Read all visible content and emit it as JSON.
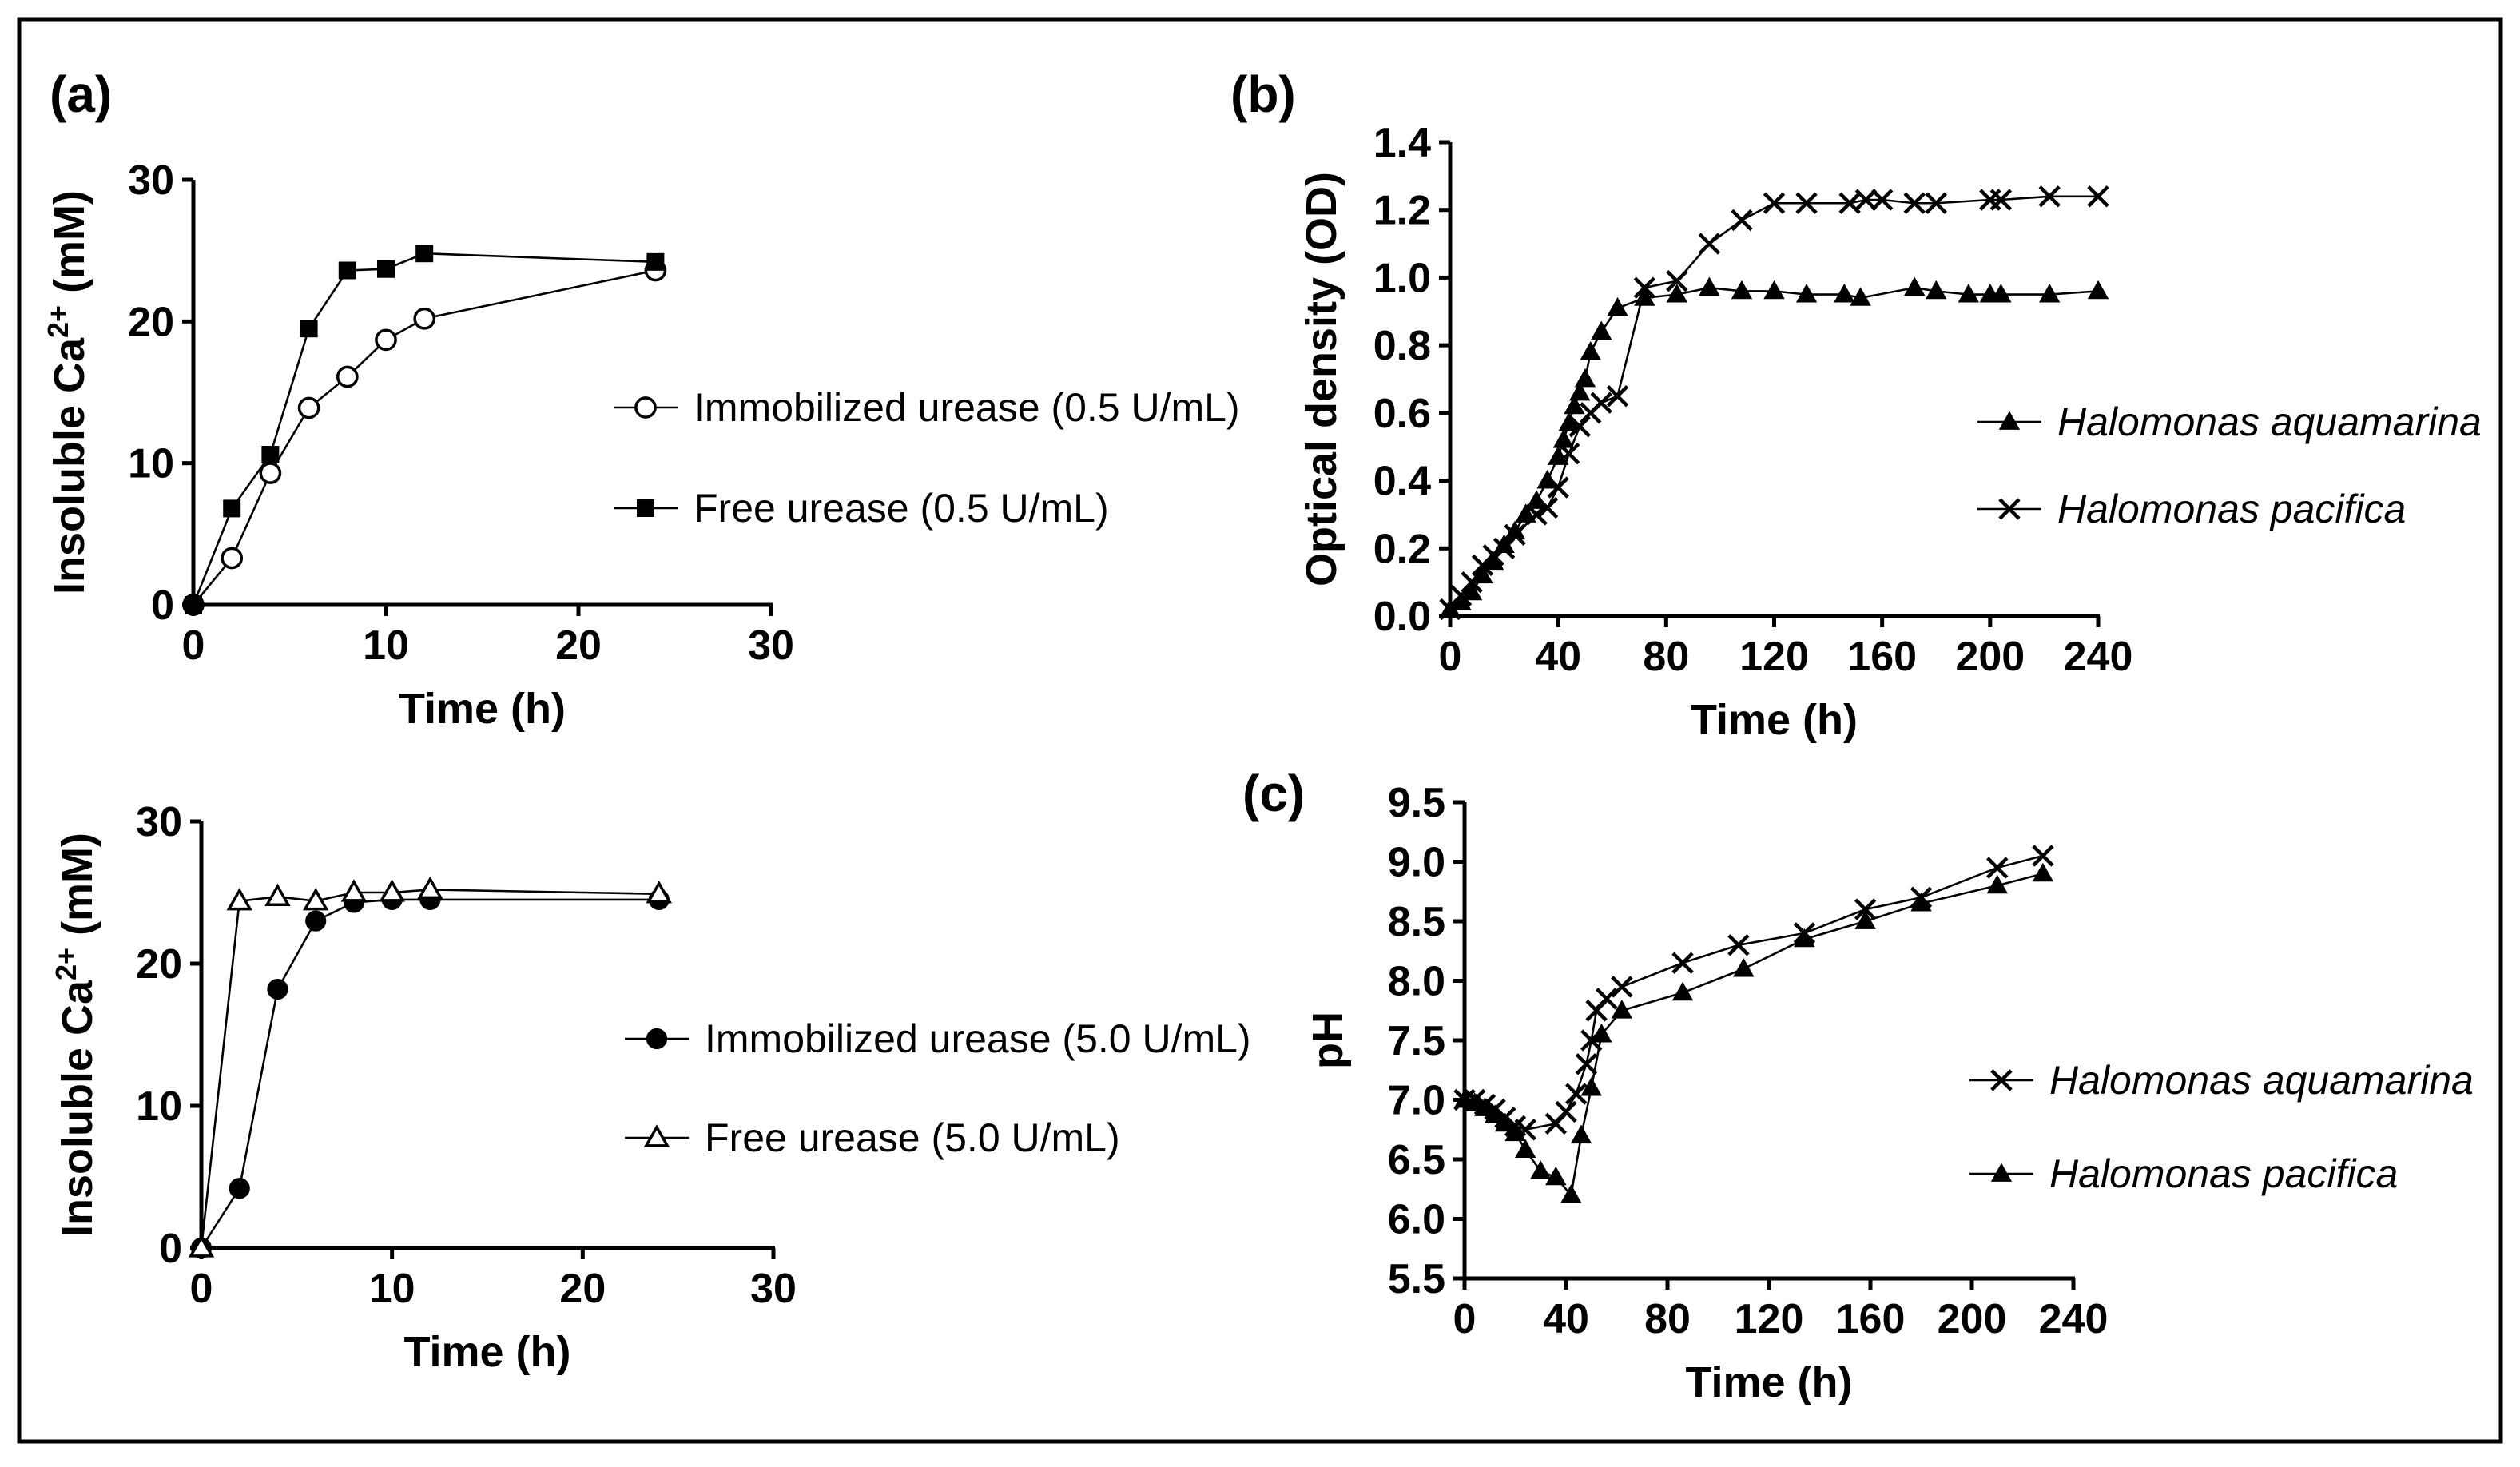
{
  "chart_data": [
    {
      "id": "a1",
      "panel_label": "(a)",
      "type": "line",
      "xlabel": "Time (h)",
      "ylabel": "Insoluble Ca2+ (mM)",
      "ylabel_parts": {
        "main": "Insoluble Ca",
        "sup": "2+",
        "tail": " (mM)"
      },
      "xlim": [
        0,
        30
      ],
      "ylim": [
        0,
        30
      ],
      "xticks": [
        0,
        10,
        20,
        30
      ],
      "yticks": [
        0,
        10,
        20,
        30
      ],
      "xtick_labels": [
        "0",
        "10",
        "20",
        "30"
      ],
      "ytick_labels": [
        "0",
        "10",
        "20",
        "30"
      ],
      "legend_placement": "right",
      "series": [
        {
          "name": "Immobilized urease (0.5 U/mL)",
          "marker": "open-circle",
          "x": [
            0,
            2,
            4,
            6,
            8,
            10,
            12,
            24
          ],
          "y": [
            0,
            3.3,
            9.3,
            13.9,
            16.1,
            18.7,
            20.2,
            23.6
          ]
        },
        {
          "name": "Free urease (0.5 U/mL)",
          "marker": "filled-square",
          "x": [
            0,
            2,
            4,
            6,
            8,
            10,
            12,
            24
          ],
          "y": [
            0,
            6.8,
            10.6,
            19.5,
            23.6,
            23.7,
            24.8,
            24.2
          ]
        }
      ]
    },
    {
      "id": "a2",
      "panel_label": "",
      "type": "line",
      "xlabel": "Time (h)",
      "ylabel": "Insoluble Ca2+ (mM)",
      "ylabel_parts": {
        "main": "Insoluble Ca",
        "sup": "2+",
        "tail": " (mM)"
      },
      "xlim": [
        0,
        30
      ],
      "ylim": [
        0,
        30
      ],
      "xticks": [
        0,
        10,
        20,
        30
      ],
      "yticks": [
        0,
        10,
        20,
        30
      ],
      "xtick_labels": [
        "0",
        "10",
        "20",
        "30"
      ],
      "ytick_labels": [
        "0",
        "10",
        "20",
        "30"
      ],
      "legend_placement": "right",
      "series": [
        {
          "name": "Immobilized urease (5.0 U/mL)",
          "marker": "filled-circle",
          "x": [
            0,
            2,
            4,
            6,
            8,
            10,
            12,
            24
          ],
          "y": [
            0,
            4.2,
            18.2,
            23.0,
            24.3,
            24.5,
            24.5,
            24.5
          ]
        },
        {
          "name": "Free urease (5.0 U/mL)",
          "marker": "open-triangle",
          "x": [
            0,
            2,
            4,
            6,
            8,
            10,
            12,
            24
          ],
          "y": [
            0,
            24.4,
            24.7,
            24.4,
            25.0,
            25.0,
            25.2,
            24.9
          ]
        }
      ]
    },
    {
      "id": "b",
      "panel_label": "(b)",
      "type": "line",
      "xlabel": "Time (h)",
      "ylabel": "Optical density (OD)",
      "xlim": [
        0,
        240
      ],
      "ylim": [
        0,
        1.4
      ],
      "xticks": [
        0,
        40,
        80,
        120,
        160,
        200,
        240
      ],
      "yticks": [
        0,
        0.2,
        0.4,
        0.6,
        0.8,
        1.0,
        1.2,
        1.4
      ],
      "xtick_labels": [
        "0",
        "40",
        "80",
        "120",
        "160",
        "200",
        "240"
      ],
      "ytick_labels": [
        "0.0",
        "0.2",
        "0.4",
        "0.6",
        "0.8",
        "1.0",
        "1.2",
        "1.4"
      ],
      "legend_placement": "right",
      "series": [
        {
          "name": "Halomonas aquamarina",
          "marker": "filled-triangle",
          "x": [
            0,
            4,
            8,
            12,
            16,
            20,
            24,
            28,
            32,
            36,
            40,
            42,
            44,
            46,
            48,
            50,
            52,
            56,
            62,
            72,
            84,
            96,
            108,
            120,
            132,
            146,
            152,
            172,
            180,
            192,
            200,
            204,
            222,
            240
          ],
          "y": [
            0.02,
            0.04,
            0.07,
            0.12,
            0.16,
            0.21,
            0.25,
            0.3,
            0.34,
            0.4,
            0.47,
            0.52,
            0.57,
            0.62,
            0.66,
            0.7,
            0.78,
            0.84,
            0.91,
            0.94,
            0.95,
            0.97,
            0.96,
            0.96,
            0.95,
            0.95,
            0.94,
            0.97,
            0.96,
            0.95,
            0.95,
            0.95,
            0.95,
            0.96
          ]
        },
        {
          "name": "Halomonas pacifica",
          "marker": "cross",
          "x": [
            0,
            4,
            8,
            12,
            16,
            20,
            24,
            32,
            36,
            40,
            44,
            48,
            52,
            56,
            62,
            72,
            84,
            96,
            108,
            120,
            132,
            148,
            154,
            160,
            172,
            180,
            200,
            204,
            222,
            240
          ],
          "y": [
            0.02,
            0.06,
            0.1,
            0.15,
            0.18,
            0.2,
            0.24,
            0.3,
            0.32,
            0.38,
            0.48,
            0.56,
            0.6,
            0.63,
            0.65,
            0.97,
            0.99,
            1.1,
            1.17,
            1.22,
            1.22,
            1.22,
            1.23,
            1.23,
            1.22,
            1.22,
            1.23,
            1.23,
            1.24,
            1.24
          ]
        }
      ]
    },
    {
      "id": "c",
      "panel_label": "(c)",
      "type": "line",
      "xlabel": "Time (h)",
      "ylabel": "pH",
      "xlim": [
        0,
        240
      ],
      "ylim": [
        5.5,
        9.5
      ],
      "xticks": [
        0,
        40,
        80,
        120,
        160,
        200,
        240
      ],
      "yticks": [
        5.5,
        6.0,
        6.5,
        7.0,
        7.5,
        8.0,
        8.5,
        9.0,
        9.5
      ],
      "xtick_labels": [
        "0",
        "40",
        "80",
        "120",
        "160",
        "200",
        "240"
      ],
      "ytick_labels": [
        "5.5",
        "6.0",
        "6.5",
        "7.0",
        "7.5",
        "8.0",
        "8.5",
        "9.0",
        "9.5"
      ],
      "legend_placement": "right",
      "series": [
        {
          "name": "Halomonas aquamarina",
          "marker": "cross",
          "x": [
            0,
            4,
            8,
            12,
            16,
            20,
            24,
            36,
            40,
            44,
            48,
            50,
            52,
            56,
            62,
            86,
            108,
            134,
            158,
            180,
            210,
            228
          ],
          "y": [
            7.0,
            7.0,
            6.96,
            6.92,
            6.85,
            6.78,
            6.75,
            6.8,
            6.9,
            7.05,
            7.3,
            7.5,
            7.75,
            7.85,
            7.95,
            8.15,
            8.3,
            8.4,
            8.6,
            8.7,
            8.95,
            9.05
          ]
        },
        {
          "name": "Halomonas pacifica",
          "marker": "filled-triangle",
          "x": [
            0,
            4,
            8,
            12,
            16,
            20,
            24,
            30,
            36,
            42,
            46,
            50,
            54,
            62,
            86,
            110,
            134,
            158,
            180,
            210,
            228
          ],
          "y": [
            7.0,
            6.97,
            6.93,
            6.87,
            6.8,
            6.72,
            6.58,
            6.4,
            6.35,
            6.2,
            6.7,
            7.1,
            7.55,
            7.75,
            7.9,
            8.1,
            8.35,
            8.5,
            8.65,
            8.8,
            8.9
          ]
        }
      ]
    }
  ]
}
